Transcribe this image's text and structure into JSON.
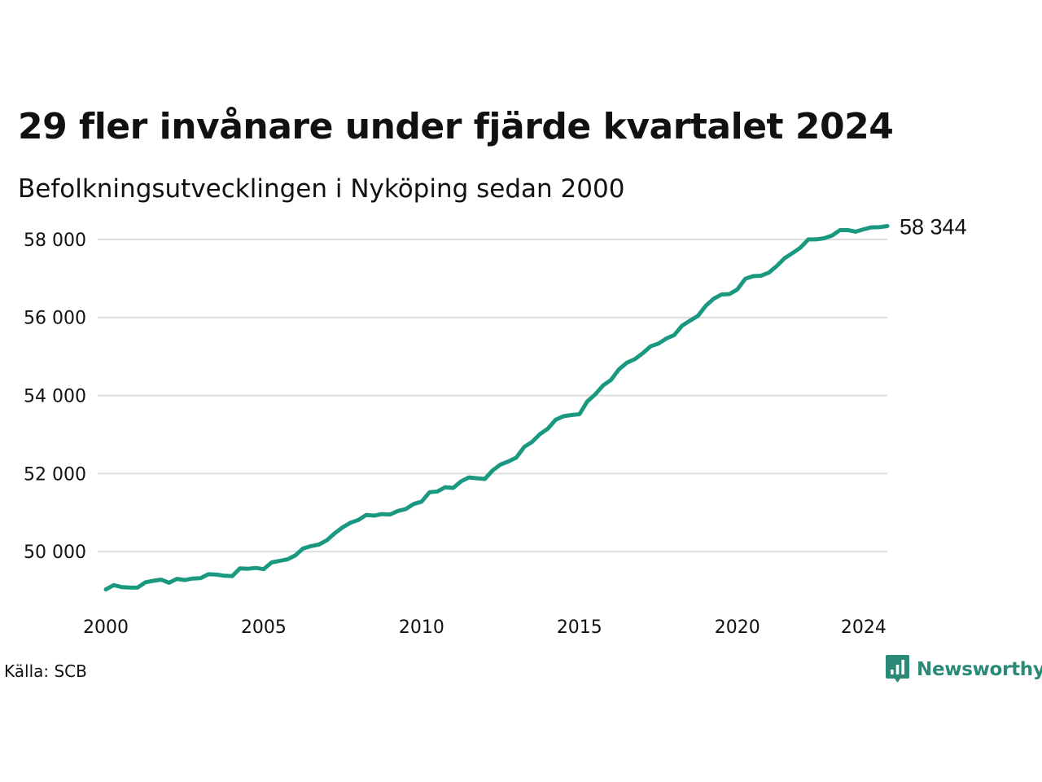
{
  "title": "29 fler invånare under fjärde kvartalet 2024",
  "subtitle": "Befolkningsutvecklingen i Nyköping sedan 2000",
  "source": "Källa: SCB",
  "brand": {
    "name": "Newsworthy",
    "icon": "newsworthy-logo-icon",
    "color": "#2a8a77"
  },
  "chart_data": {
    "type": "line",
    "title": "29 fler invånare under fjärde kvartalet 2024",
    "subtitle": "Befolkningsutvecklingen i Nyköping sedan 2000",
    "xlabel": "",
    "ylabel": "",
    "grid": true,
    "line_color": "#1a9980",
    "grid_color": "#dddddd",
    "xlim": [
      2000,
      2024.75
    ],
    "ylim": [
      49000,
      58500
    ],
    "x_ticks": [
      {
        "value": 2000,
        "label": "2000"
      },
      {
        "value": 2005,
        "label": "2005"
      },
      {
        "value": 2010,
        "label": "2010"
      },
      {
        "value": 2015,
        "label": "2015"
      },
      {
        "value": 2020,
        "label": "2020"
      },
      {
        "value": 2024,
        "label": "2024"
      }
    ],
    "y_ticks": [
      {
        "value": 50000,
        "label": "50 000"
      },
      {
        "value": 52000,
        "label": "52 000"
      },
      {
        "value": 54000,
        "label": "54 000"
      },
      {
        "value": 56000,
        "label": "56 000"
      },
      {
        "value": 58000,
        "label": "58 000"
      }
    ],
    "end_label": "58 344",
    "series": [
      {
        "x": [
          2000.0,
          2000.25,
          2000.5,
          2000.75,
          2001.0,
          2001.25,
          2001.5,
          2001.75,
          2002.0,
          2002.25,
          2002.5,
          2002.75,
          2003.0,
          2003.25,
          2003.5,
          2003.75,
          2004.0,
          2004.25,
          2004.5,
          2004.75,
          2005.0,
          2005.25,
          2005.5,
          2005.75,
          2006.0,
          2006.25,
          2006.5,
          2006.75,
          2007.0,
          2007.25,
          2007.5,
          2007.75,
          2008.0,
          2008.25,
          2008.5,
          2008.75,
          2009.0,
          2009.25,
          2009.5,
          2009.75,
          2010.0,
          2010.25,
          2010.5,
          2010.75,
          2011.0,
          2011.25,
          2011.5,
          2011.75,
          2012.0,
          2012.25,
          2012.5,
          2012.75,
          2013.0,
          2013.25,
          2013.5,
          2013.75,
          2014.0,
          2014.25,
          2014.5,
          2014.75,
          2015.0,
          2015.25,
          2015.5,
          2015.75,
          2016.0,
          2016.25,
          2016.5,
          2016.75,
          2017.0,
          2017.25,
          2017.5,
          2017.75,
          2018.0,
          2018.25,
          2018.5,
          2018.75,
          2019.0,
          2019.25,
          2019.5,
          2019.75,
          2020.0,
          2020.25,
          2020.5,
          2020.75,
          2021.0,
          2021.25,
          2021.5,
          2021.75,
          2022.0,
          2022.25,
          2022.5,
          2022.75,
          2023.0,
          2023.25,
          2023.5,
          2023.75,
          2024.0,
          2024.25,
          2024.5,
          2024.75
        ],
        "y": [
          49030,
          49140,
          49090,
          49080,
          49075,
          49210,
          49250,
          49280,
          49200,
          49300,
          49270,
          49310,
          49320,
          49420,
          49410,
          49380,
          49370,
          49570,
          49560,
          49580,
          49550,
          49720,
          49760,
          49800,
          49900,
          50080,
          50140,
          50180,
          50290,
          50470,
          50620,
          50740,
          50810,
          50940,
          50920,
          50960,
          50950,
          51040,
          51090,
          51220,
          51280,
          51520,
          51540,
          51650,
          51630,
          51800,
          51900,
          51880,
          51860,
          52080,
          52230,
          52310,
          52410,
          52680,
          52810,
          53010,
          53150,
          53380,
          53470,
          53500,
          53520,
          53850,
          54030,
          54260,
          54400,
          54670,
          54840,
          54930,
          55080,
          55260,
          55330,
          55460,
          55550,
          55790,
          55920,
          56040,
          56300,
          56480,
          56590,
          56600,
          56720,
          56990,
          57060,
          57070,
          57150,
          57320,
          57520,
          57650,
          57790,
          58000,
          58000,
          58030,
          58100,
          58240,
          58240,
          58200,
          58260,
          58310,
          58315,
          58344
        ]
      }
    ]
  }
}
